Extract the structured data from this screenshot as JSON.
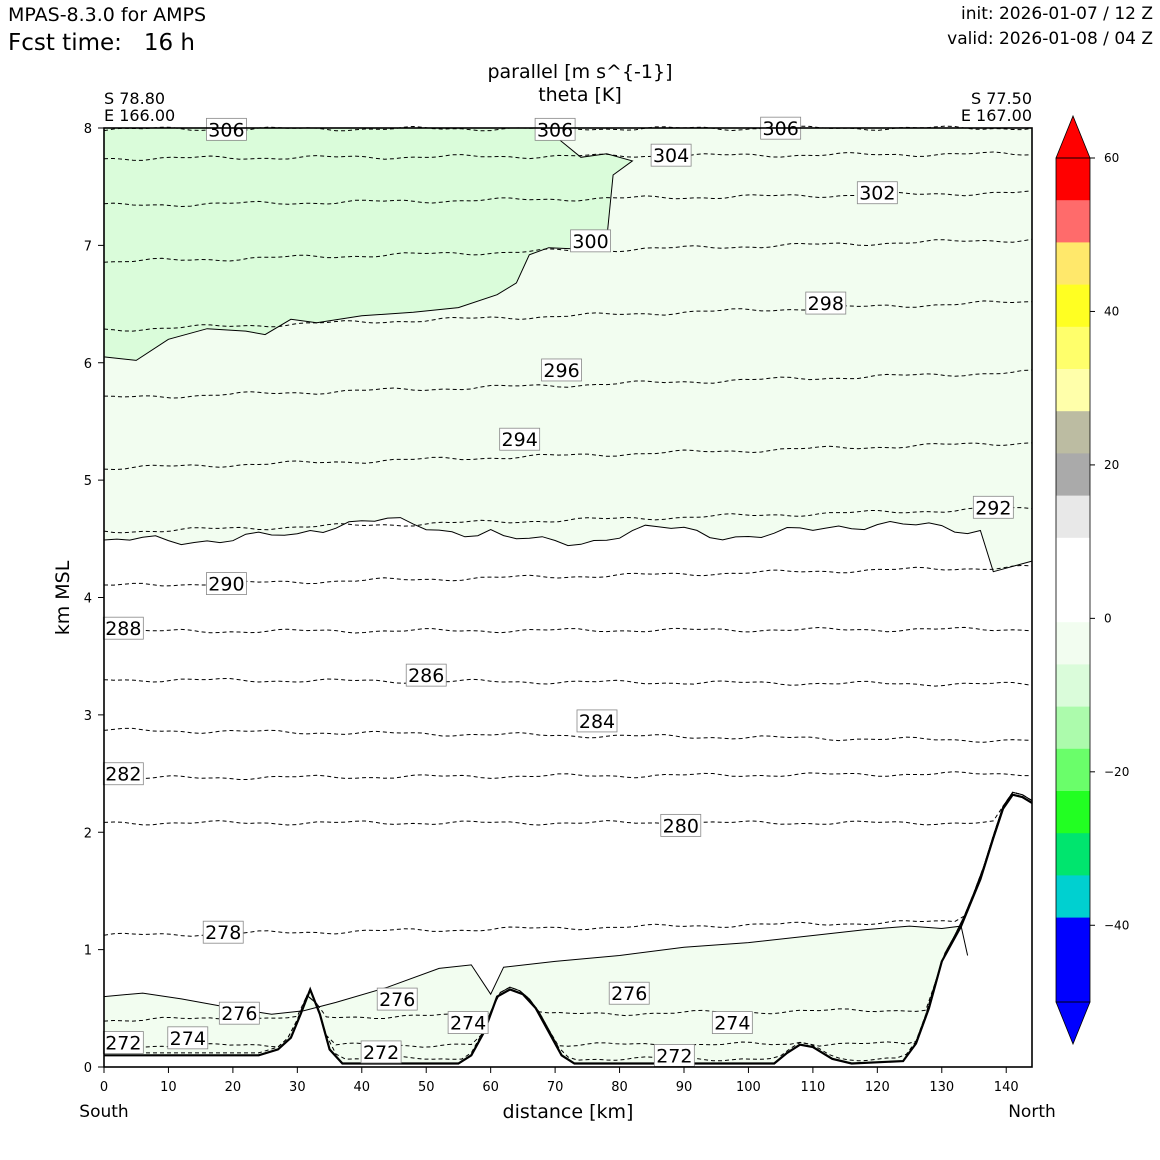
{
  "header": {
    "model": "MPAS-8.3.0 for AMPS",
    "fcst_label": "Fcst time:",
    "fcst_value": "16 h",
    "init": "init: 2026-01-07 / 12 Z",
    "valid": "valid: 2026-01-08 / 04 Z"
  },
  "chart_data": {
    "type": "cross-section",
    "title_line1": "parallel [m s^{-1}]",
    "title_line2": "theta [K]",
    "start_lat": "S 78.80",
    "start_lon": "E 166.00",
    "end_lat": "S 77.50",
    "end_lon": "E 167.00",
    "xlabel": "distance [km]",
    "ylabel": "km MSL",
    "xlim": [
      0,
      144
    ],
    "ylim": [
      0,
      8
    ],
    "x_ticks": [
      0,
      10,
      20,
      30,
      40,
      50,
      60,
      70,
      80,
      90,
      100,
      110,
      120,
      130,
      140
    ],
    "y_ticks": [
      0,
      1,
      2,
      3,
      4,
      5,
      6,
      7,
      8
    ],
    "left_end_label": "South",
    "right_end_label": "North",
    "colorbar": {
      "tick_labels": [
        "60",
        "40",
        "20",
        "0",
        "−20",
        "−40"
      ],
      "tick_values": [
        60,
        40,
        20,
        0,
        -20,
        -40
      ],
      "vmin": -50,
      "vmax": 60,
      "colors_top_down": [
        "#ff0000",
        "#ff6b6b",
        "#ffe86b",
        "#ffff22",
        "#ffff6b",
        "#ffffaa",
        "#bcbca2",
        "#aaaaaa",
        "#e8e8e8",
        "#ffffff",
        "#ffffff",
        "#f2fdf0",
        "#dafcda",
        "#acfbac",
        "#6afe6a",
        "#22ff22",
        "#00e56e",
        "#00d0d0",
        "#0000ff",
        "#0000ff"
      ],
      "over_color": "#ff0000",
      "under_color": "#0000ff"
    },
    "theta_isentropes": [
      {
        "level": "272",
        "y_left": 0.07,
        "y_right": 0.07
      },
      {
        "level": "274",
        "y_left": 0.18,
        "y_right": 0.2
      },
      {
        "level": "276",
        "y_left": 0.4,
        "y_right": 0.5
      },
      {
        "level": "278",
        "y_left": 1.12,
        "y_right": 1.25
      },
      {
        "level": "280",
        "y_left": 2.08,
        "y_right": 2.08
      },
      {
        "level": "282",
        "y_left": 2.46,
        "y_right": 2.5
      },
      {
        "level": "284",
        "y_left": 2.87,
        "y_right": 2.78
      },
      {
        "level": "286",
        "y_left": 3.3,
        "y_right": 3.26
      },
      {
        "level": "288",
        "y_left": 3.71,
        "y_right": 3.73
      },
      {
        "level": "290",
        "y_left": 4.1,
        "y_right": 4.26
      },
      {
        "level": "292",
        "y_left": 4.56,
        "y_right": 4.76
      },
      {
        "level": "294",
        "y_left": 5.1,
        "y_right": 5.32
      },
      {
        "level": "296",
        "y_left": 5.7,
        "y_right": 5.92
      },
      {
        "level": "298",
        "y_left": 6.28,
        "y_right": 6.52
      },
      {
        "level": "300",
        "y_left": 6.86,
        "y_right": 7.05
      },
      {
        "level": "302",
        "y_left": 7.34,
        "y_right": 7.45
      },
      {
        "level": "304",
        "y_left": 7.74,
        "y_right": 7.78
      },
      {
        "level": "306",
        "y_left": 7.99,
        "y_right": 8.0
      }
    ],
    "theta_labels": [
      {
        "text": "306",
        "x": 19,
        "y": 7.98
      },
      {
        "text": "306",
        "x": 70,
        "y": 7.98
      },
      {
        "text": "306",
        "x": 105,
        "y": 7.99
      },
      {
        "text": "304",
        "x": 88,
        "y": 7.76
      },
      {
        "text": "302",
        "x": 120,
        "y": 7.44
      },
      {
        "text": "300",
        "x": 75.5,
        "y": 7.03
      },
      {
        "text": "298",
        "x": 112,
        "y": 6.5
      },
      {
        "text": "296",
        "x": 71,
        "y": 5.93
      },
      {
        "text": "294",
        "x": 64.5,
        "y": 5.34
      },
      {
        "text": "292",
        "x": 138,
        "y": 4.76
      },
      {
        "text": "290",
        "x": 19,
        "y": 4.11
      },
      {
        "text": "288",
        "x": 3,
        "y": 3.73
      },
      {
        "text": "286",
        "x": 50,
        "y": 3.33
      },
      {
        "text": "284",
        "x": 76.5,
        "y": 2.94
      },
      {
        "text": "282",
        "x": 3,
        "y": 2.49
      },
      {
        "text": "280",
        "x": 89.5,
        "y": 2.05
      },
      {
        "text": "278",
        "x": 18.5,
        "y": 1.14
      },
      {
        "text": "276",
        "x": 21,
        "y": 0.45
      },
      {
        "text": "276",
        "x": 45.5,
        "y": 0.57
      },
      {
        "text": "276",
        "x": 81.5,
        "y": 0.62
      },
      {
        "text": "274",
        "x": 13,
        "y": 0.24
      },
      {
        "text": "274",
        "x": 56.5,
        "y": 0.37
      },
      {
        "text": "274",
        "x": 97.5,
        "y": 0.37
      },
      {
        "text": "272",
        "x": 3,
        "y": 0.2
      },
      {
        "text": "272",
        "x": 43,
        "y": 0.12
      },
      {
        "text": "272",
        "x": 88.5,
        "y": 0.09
      }
    ],
    "parallel_wind_regions": [
      {
        "range": "-10 to -5 m/s",
        "color": "#dafcda",
        "x_extent": [
          0,
          82
        ],
        "y_extent": [
          6.0,
          8.0
        ]
      },
      {
        "range": "-5 to 0 m/s",
        "color": "#f2fdf0",
        "x_extent": [
          0,
          144
        ],
        "y_extent": [
          4.2,
          8.0
        ]
      },
      {
        "range": "-5 to 0 m/s",
        "color": "#f2fdf0",
        "x_extent": [
          0,
          134
        ],
        "y_extent": [
          0.0,
          1.2
        ]
      }
    ],
    "terrain": [
      [
        0,
        0.1
      ],
      [
        10,
        0.1
      ],
      [
        24,
        0.1
      ],
      [
        27,
        0.15
      ],
      [
        29,
        0.25
      ],
      [
        30.5,
        0.45
      ],
      [
        32,
        0.66
      ],
      [
        33.5,
        0.45
      ],
      [
        35,
        0.15
      ],
      [
        37,
        0.03
      ],
      [
        55,
        0.03
      ],
      [
        57,
        0.1
      ],
      [
        59,
        0.3
      ],
      [
        61,
        0.6
      ],
      [
        63,
        0.66
      ],
      [
        65,
        0.62
      ],
      [
        67,
        0.5
      ],
      [
        69,
        0.3
      ],
      [
        71,
        0.1
      ],
      [
        73,
        0.03
      ],
      [
        104,
        0.03
      ],
      [
        106,
        0.12
      ],
      [
        108,
        0.19
      ],
      [
        110,
        0.17
      ],
      [
        113,
        0.07
      ],
      [
        116,
        0.03
      ],
      [
        124,
        0.05
      ],
      [
        126,
        0.2
      ],
      [
        128,
        0.5
      ],
      [
        130,
        0.9
      ],
      [
        133,
        1.2
      ],
      [
        136,
        1.6
      ],
      [
        138,
        1.95
      ],
      [
        139.5,
        2.2
      ],
      [
        141,
        2.32
      ],
      [
        142.5,
        2.3
      ],
      [
        144,
        2.25
      ]
    ]
  }
}
